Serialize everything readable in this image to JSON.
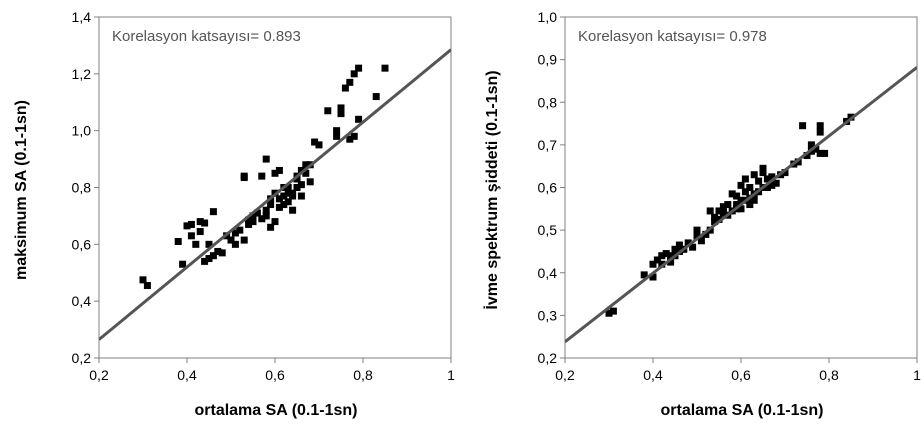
{
  "chart_data": [
    {
      "type": "scatter",
      "annotation": "Korelasyon katsayısı= 0.893",
      "xlabel": "ortalama SA (0.1-1sn)",
      "ylabel": "maksimum SA (0.1-1sn)",
      "xlim": [
        0.2,
        1.0
      ],
      "ylim": [
        0.2,
        1.4
      ],
      "xticks": [
        "0,2",
        "0,4",
        "0,6",
        "0,8",
        "1"
      ],
      "yticks": [
        "0,2",
        "0,4",
        "0,6",
        "0,8",
        "1,0",
        "1,2",
        "1,4"
      ],
      "grid": false,
      "trendline": {
        "x": [
          0.2,
          1.0
        ],
        "y": [
          0.265,
          1.285
        ]
      },
      "points": [
        [
          0.3,
          0.475
        ],
        [
          0.31,
          0.455
        ],
        [
          0.38,
          0.61
        ],
        [
          0.39,
          0.53
        ],
        [
          0.4,
          0.665
        ],
        [
          0.41,
          0.67
        ],
        [
          0.41,
          0.63
        ],
        [
          0.42,
          0.6
        ],
        [
          0.43,
          0.68
        ],
        [
          0.43,
          0.645
        ],
        [
          0.44,
          0.675
        ],
        [
          0.44,
          0.54
        ],
        [
          0.45,
          0.55
        ],
        [
          0.45,
          0.6
        ],
        [
          0.46,
          0.715
        ],
        [
          0.46,
          0.56
        ],
        [
          0.47,
          0.575
        ],
        [
          0.48,
          0.57
        ],
        [
          0.49,
          0.63
        ],
        [
          0.5,
          0.615
        ],
        [
          0.51,
          0.64
        ],
        [
          0.51,
          0.6
        ],
        [
          0.52,
          0.65
        ],
        [
          0.53,
          0.835
        ],
        [
          0.53,
          0.84
        ],
        [
          0.53,
          0.615
        ],
        [
          0.54,
          0.67
        ],
        [
          0.54,
          0.685
        ],
        [
          0.55,
          0.7
        ],
        [
          0.55,
          0.68
        ],
        [
          0.56,
          0.71
        ],
        [
          0.57,
          0.69
        ],
        [
          0.57,
          0.84
        ],
        [
          0.58,
          0.72
        ],
        [
          0.58,
          0.7
        ],
        [
          0.58,
          0.9
        ],
        [
          0.59,
          0.74
        ],
        [
          0.59,
          0.76
        ],
        [
          0.59,
          0.66
        ],
        [
          0.6,
          0.85
        ],
        [
          0.6,
          0.78
        ],
        [
          0.6,
          0.68
        ],
        [
          0.61,
          0.76
        ],
        [
          0.61,
          0.73
        ],
        [
          0.61,
          0.86
        ],
        [
          0.62,
          0.8
        ],
        [
          0.62,
          0.74
        ],
        [
          0.62,
          0.77
        ],
        [
          0.63,
          0.78
        ],
        [
          0.63,
          0.75
        ],
        [
          0.63,
          0.8
        ],
        [
          0.64,
          0.77
        ],
        [
          0.64,
          0.72
        ],
        [
          0.64,
          0.78
        ],
        [
          0.65,
          0.8
        ],
        [
          0.65,
          0.83
        ],
        [
          0.65,
          0.84
        ],
        [
          0.66,
          0.86
        ],
        [
          0.66,
          0.81
        ],
        [
          0.66,
          0.77
        ],
        [
          0.67,
          0.88
        ],
        [
          0.67,
          0.85
        ],
        [
          0.68,
          0.82
        ],
        [
          0.68,
          0.88
        ],
        [
          0.69,
          0.96
        ],
        [
          0.7,
          0.95
        ],
        [
          0.72,
          1.07
        ],
        [
          0.74,
          0.98
        ],
        [
          0.74,
          1.0
        ],
        [
          0.75,
          1.06
        ],
        [
          0.75,
          1.08
        ],
        [
          0.76,
          1.15
        ],
        [
          0.77,
          0.97
        ],
        [
          0.77,
          1.17
        ],
        [
          0.78,
          1.2
        ],
        [
          0.78,
          0.98
        ],
        [
          0.79,
          1.04
        ],
        [
          0.79,
          1.22
        ],
        [
          0.83,
          1.12
        ],
        [
          0.85,
          1.22
        ]
      ]
    },
    {
      "type": "scatter",
      "annotation": "Korelasyon katsayısı= 0.978",
      "xlabel": "ortalama SA (0.1-1sn)",
      "ylabel": "İvme spektrum şiddeti (0.1-1sn)",
      "xlim": [
        0.2,
        1.0
      ],
      "ylim": [
        0.2,
        1.0
      ],
      "xticks": [
        "0,2",
        "0,4",
        "0,6",
        "0,8",
        "1"
      ],
      "yticks": [
        "0,2",
        "0,3",
        "0,4",
        "0,5",
        "0,6",
        "0,7",
        "0,8",
        "0,9",
        "1,0"
      ],
      "grid": false,
      "trendline": {
        "x": [
          0.2,
          1.0
        ],
        "y": [
          0.238,
          0.882
        ]
      },
      "points": [
        [
          0.3,
          0.305
        ],
        [
          0.31,
          0.31
        ],
        [
          0.38,
          0.395
        ],
        [
          0.4,
          0.39
        ],
        [
          0.4,
          0.42
        ],
        [
          0.41,
          0.43
        ],
        [
          0.42,
          0.42
        ],
        [
          0.42,
          0.44
        ],
        [
          0.43,
          0.445
        ],
        [
          0.44,
          0.44
        ],
        [
          0.44,
          0.425
        ],
        [
          0.45,
          0.455
        ],
        [
          0.45,
          0.44
        ],
        [
          0.46,
          0.465
        ],
        [
          0.46,
          0.45
        ],
        [
          0.47,
          0.455
        ],
        [
          0.48,
          0.47
        ],
        [
          0.49,
          0.46
        ],
        [
          0.5,
          0.5
        ],
        [
          0.5,
          0.485
        ],
        [
          0.51,
          0.475
        ],
        [
          0.52,
          0.49
        ],
        [
          0.53,
          0.545
        ],
        [
          0.53,
          0.5
        ],
        [
          0.54,
          0.52
        ],
        [
          0.54,
          0.53
        ],
        [
          0.55,
          0.525
        ],
        [
          0.55,
          0.545
        ],
        [
          0.56,
          0.54
        ],
        [
          0.56,
          0.555
        ],
        [
          0.57,
          0.535
        ],
        [
          0.57,
          0.56
        ],
        [
          0.58,
          0.585
        ],
        [
          0.58,
          0.545
        ],
        [
          0.59,
          0.55
        ],
        [
          0.59,
          0.56
        ],
        [
          0.59,
          0.58
        ],
        [
          0.6,
          0.605
        ],
        [
          0.6,
          0.55
        ],
        [
          0.6,
          0.57
        ],
        [
          0.61,
          0.57
        ],
        [
          0.61,
          0.59
        ],
        [
          0.61,
          0.62
        ],
        [
          0.62,
          0.575
        ],
        [
          0.62,
          0.56
        ],
        [
          0.62,
          0.6
        ],
        [
          0.63,
          0.63
        ],
        [
          0.63,
          0.57
        ],
        [
          0.63,
          0.585
        ],
        [
          0.64,
          0.59
        ],
        [
          0.64,
          0.615
        ],
        [
          0.65,
          0.6
        ],
        [
          0.65,
          0.635
        ],
        [
          0.65,
          0.645
        ],
        [
          0.66,
          0.6
        ],
        [
          0.66,
          0.62
        ],
        [
          0.67,
          0.625
        ],
        [
          0.67,
          0.605
        ],
        [
          0.68,
          0.61
        ],
        [
          0.69,
          0.63
        ],
        [
          0.7,
          0.635
        ],
        [
          0.72,
          0.655
        ],
        [
          0.73,
          0.66
        ],
        [
          0.74,
          0.745
        ],
        [
          0.75,
          0.675
        ],
        [
          0.76,
          0.7
        ],
        [
          0.76,
          0.685
        ],
        [
          0.77,
          0.69
        ],
        [
          0.78,
          0.745
        ],
        [
          0.78,
          0.73
        ],
        [
          0.78,
          0.68
        ],
        [
          0.79,
          0.68
        ],
        [
          0.84,
          0.755
        ],
        [
          0.85,
          0.765
        ]
      ]
    }
  ]
}
